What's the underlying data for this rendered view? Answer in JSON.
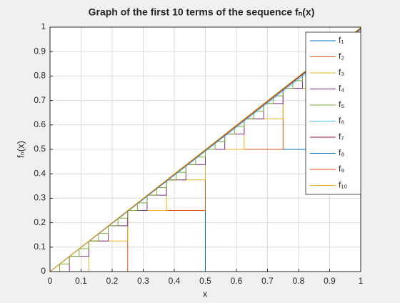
{
  "chart_data": {
    "type": "line",
    "title": "Graph of the first 10 terms of the sequence fₙ(x)",
    "x_label": "x",
    "y_label": "fₙ(x)",
    "xlim": [
      0,
      1
    ],
    "ylim": [
      0,
      1
    ],
    "xticks": [
      0,
      0.1,
      0.2,
      0.3,
      0.4,
      0.5,
      0.6,
      0.7,
      0.8,
      0.9,
      1
    ],
    "yticks": [
      0,
      0.1,
      0.2,
      0.3,
      0.4,
      0.5,
      0.6,
      0.7,
      0.8,
      0.9,
      1
    ],
    "grid": true,
    "legend": "top-right",
    "series": [
      {
        "name": "f₁",
        "color": "#0072BD",
        "x": [
          0,
          0.5,
          0.5,
          1,
          1
        ],
        "values": [
          0,
          0,
          0.5,
          0.5,
          1
        ]
      },
      {
        "name": "f₂",
        "color": "#D95319",
        "x": [
          0,
          0.25,
          0.25,
          0.5,
          0.5,
          0.75,
          0.75,
          1,
          1
        ],
        "values": [
          0,
          0,
          0.25,
          0.25,
          0.5,
          0.5,
          0.75,
          0.75,
          1
        ]
      },
      {
        "name": "f₃",
        "color": "#EDB120",
        "x": [
          0,
          0.125,
          0.125,
          0.25,
          0.25,
          0.375,
          0.375,
          0.5,
          0.5,
          0.625,
          0.625,
          0.75,
          0.75,
          0.875,
          0.875,
          1,
          1
        ],
        "values": [
          0,
          0,
          0.125,
          0.125,
          0.25,
          0.25,
          0.375,
          0.375,
          0.5,
          0.5,
          0.625,
          0.625,
          0.75,
          0.75,
          0.875,
          0.875,
          1
        ]
      },
      {
        "name": "f₄",
        "color": "#7E2F8E",
        "x": [
          0,
          0.0625,
          0.0625,
          0.125,
          0.125,
          0.1875,
          0.1875,
          0.25,
          0.25,
          0.3125,
          0.3125,
          0.375,
          0.375,
          0.4375,
          0.4375,
          0.5,
          0.5,
          0.5625,
          0.5625,
          0.625,
          0.625,
          0.6875,
          0.6875,
          0.75,
          0.75,
          0.8125,
          0.8125,
          0.875,
          0.875,
          0.9375,
          0.9375,
          1,
          1
        ],
        "values": [
          0,
          0,
          0.0625,
          0.0625,
          0.125,
          0.125,
          0.1875,
          0.1875,
          0.25,
          0.25,
          0.3125,
          0.3125,
          0.375,
          0.375,
          0.4375,
          0.4375,
          0.5,
          0.5,
          0.5625,
          0.5625,
          0.625,
          0.625,
          0.6875,
          0.6875,
          0.75,
          0.75,
          0.8125,
          0.8125,
          0.875,
          0.875,
          0.9375,
          0.9375,
          1
        ]
      },
      {
        "name": "f₅",
        "color": "#77AC30",
        "x": [
          0,
          0.03125,
          0.03125,
          0.0625,
          0.0625,
          0.09375,
          0.09375,
          0.125,
          0.125,
          0.15625,
          0.15625,
          0.1875,
          0.1875,
          0.21875,
          0.21875,
          0.25,
          0.25,
          0.28125,
          0.28125,
          0.3125,
          0.3125,
          0.34375,
          0.34375,
          0.375,
          0.375,
          0.40625,
          0.40625,
          0.4375,
          0.4375,
          0.46875,
          0.46875,
          0.5,
          0.5,
          0.53125,
          0.53125,
          0.5625,
          0.5625,
          0.59375,
          0.59375,
          0.625,
          0.625,
          0.65625,
          0.65625,
          0.6875,
          0.6875,
          0.71875,
          0.71875,
          0.75,
          0.75,
          0.78125,
          0.78125,
          0.8125,
          0.8125,
          0.84375,
          0.84375,
          0.875,
          0.875,
          0.90625,
          0.90625,
          0.9375,
          0.9375,
          0.96875,
          0.96875,
          1,
          1
        ],
        "values": [
          0,
          0,
          0.03125,
          0.03125,
          0.0625,
          0.0625,
          0.09375,
          0.09375,
          0.125,
          0.125,
          0.15625,
          0.15625,
          0.1875,
          0.1875,
          0.21875,
          0.21875,
          0.25,
          0.25,
          0.28125,
          0.28125,
          0.3125,
          0.3125,
          0.34375,
          0.34375,
          0.375,
          0.375,
          0.40625,
          0.40625,
          0.4375,
          0.4375,
          0.46875,
          0.46875,
          0.5,
          0.5,
          0.53125,
          0.53125,
          0.5625,
          0.5625,
          0.59375,
          0.59375,
          0.625,
          0.625,
          0.65625,
          0.65625,
          0.6875,
          0.6875,
          0.71875,
          0.71875,
          0.75,
          0.75,
          0.78125,
          0.78125,
          0.8125,
          0.8125,
          0.84375,
          0.84375,
          0.875,
          0.875,
          0.90625,
          0.90625,
          0.9375,
          0.9375,
          0.96875,
          0.96875,
          1
        ]
      },
      {
        "name": "f₆",
        "color": "#4DBEEE",
        "x": [
          0,
          1,
          1
        ],
        "values": [
          0,
          0.984375,
          1
        ]
      },
      {
        "name": "f₇",
        "color": "#A2142F",
        "x": [
          0,
          1,
          1
        ],
        "values": [
          0,
          0.9921875,
          1
        ]
      },
      {
        "name": "f₈",
        "color": "#0072BD",
        "x": [
          0,
          1,
          1
        ],
        "values": [
          0,
          0.99609375,
          1
        ]
      },
      {
        "name": "f₉",
        "color": "#D95319",
        "x": [
          0,
          1,
          1
        ],
        "values": [
          0,
          0.998046875,
          1
        ]
      },
      {
        "name": "f₁₀",
        "color": "#EDB120",
        "x": [
          0,
          1,
          1
        ],
        "values": [
          0,
          0.9990234375,
          1
        ]
      }
    ]
  }
}
